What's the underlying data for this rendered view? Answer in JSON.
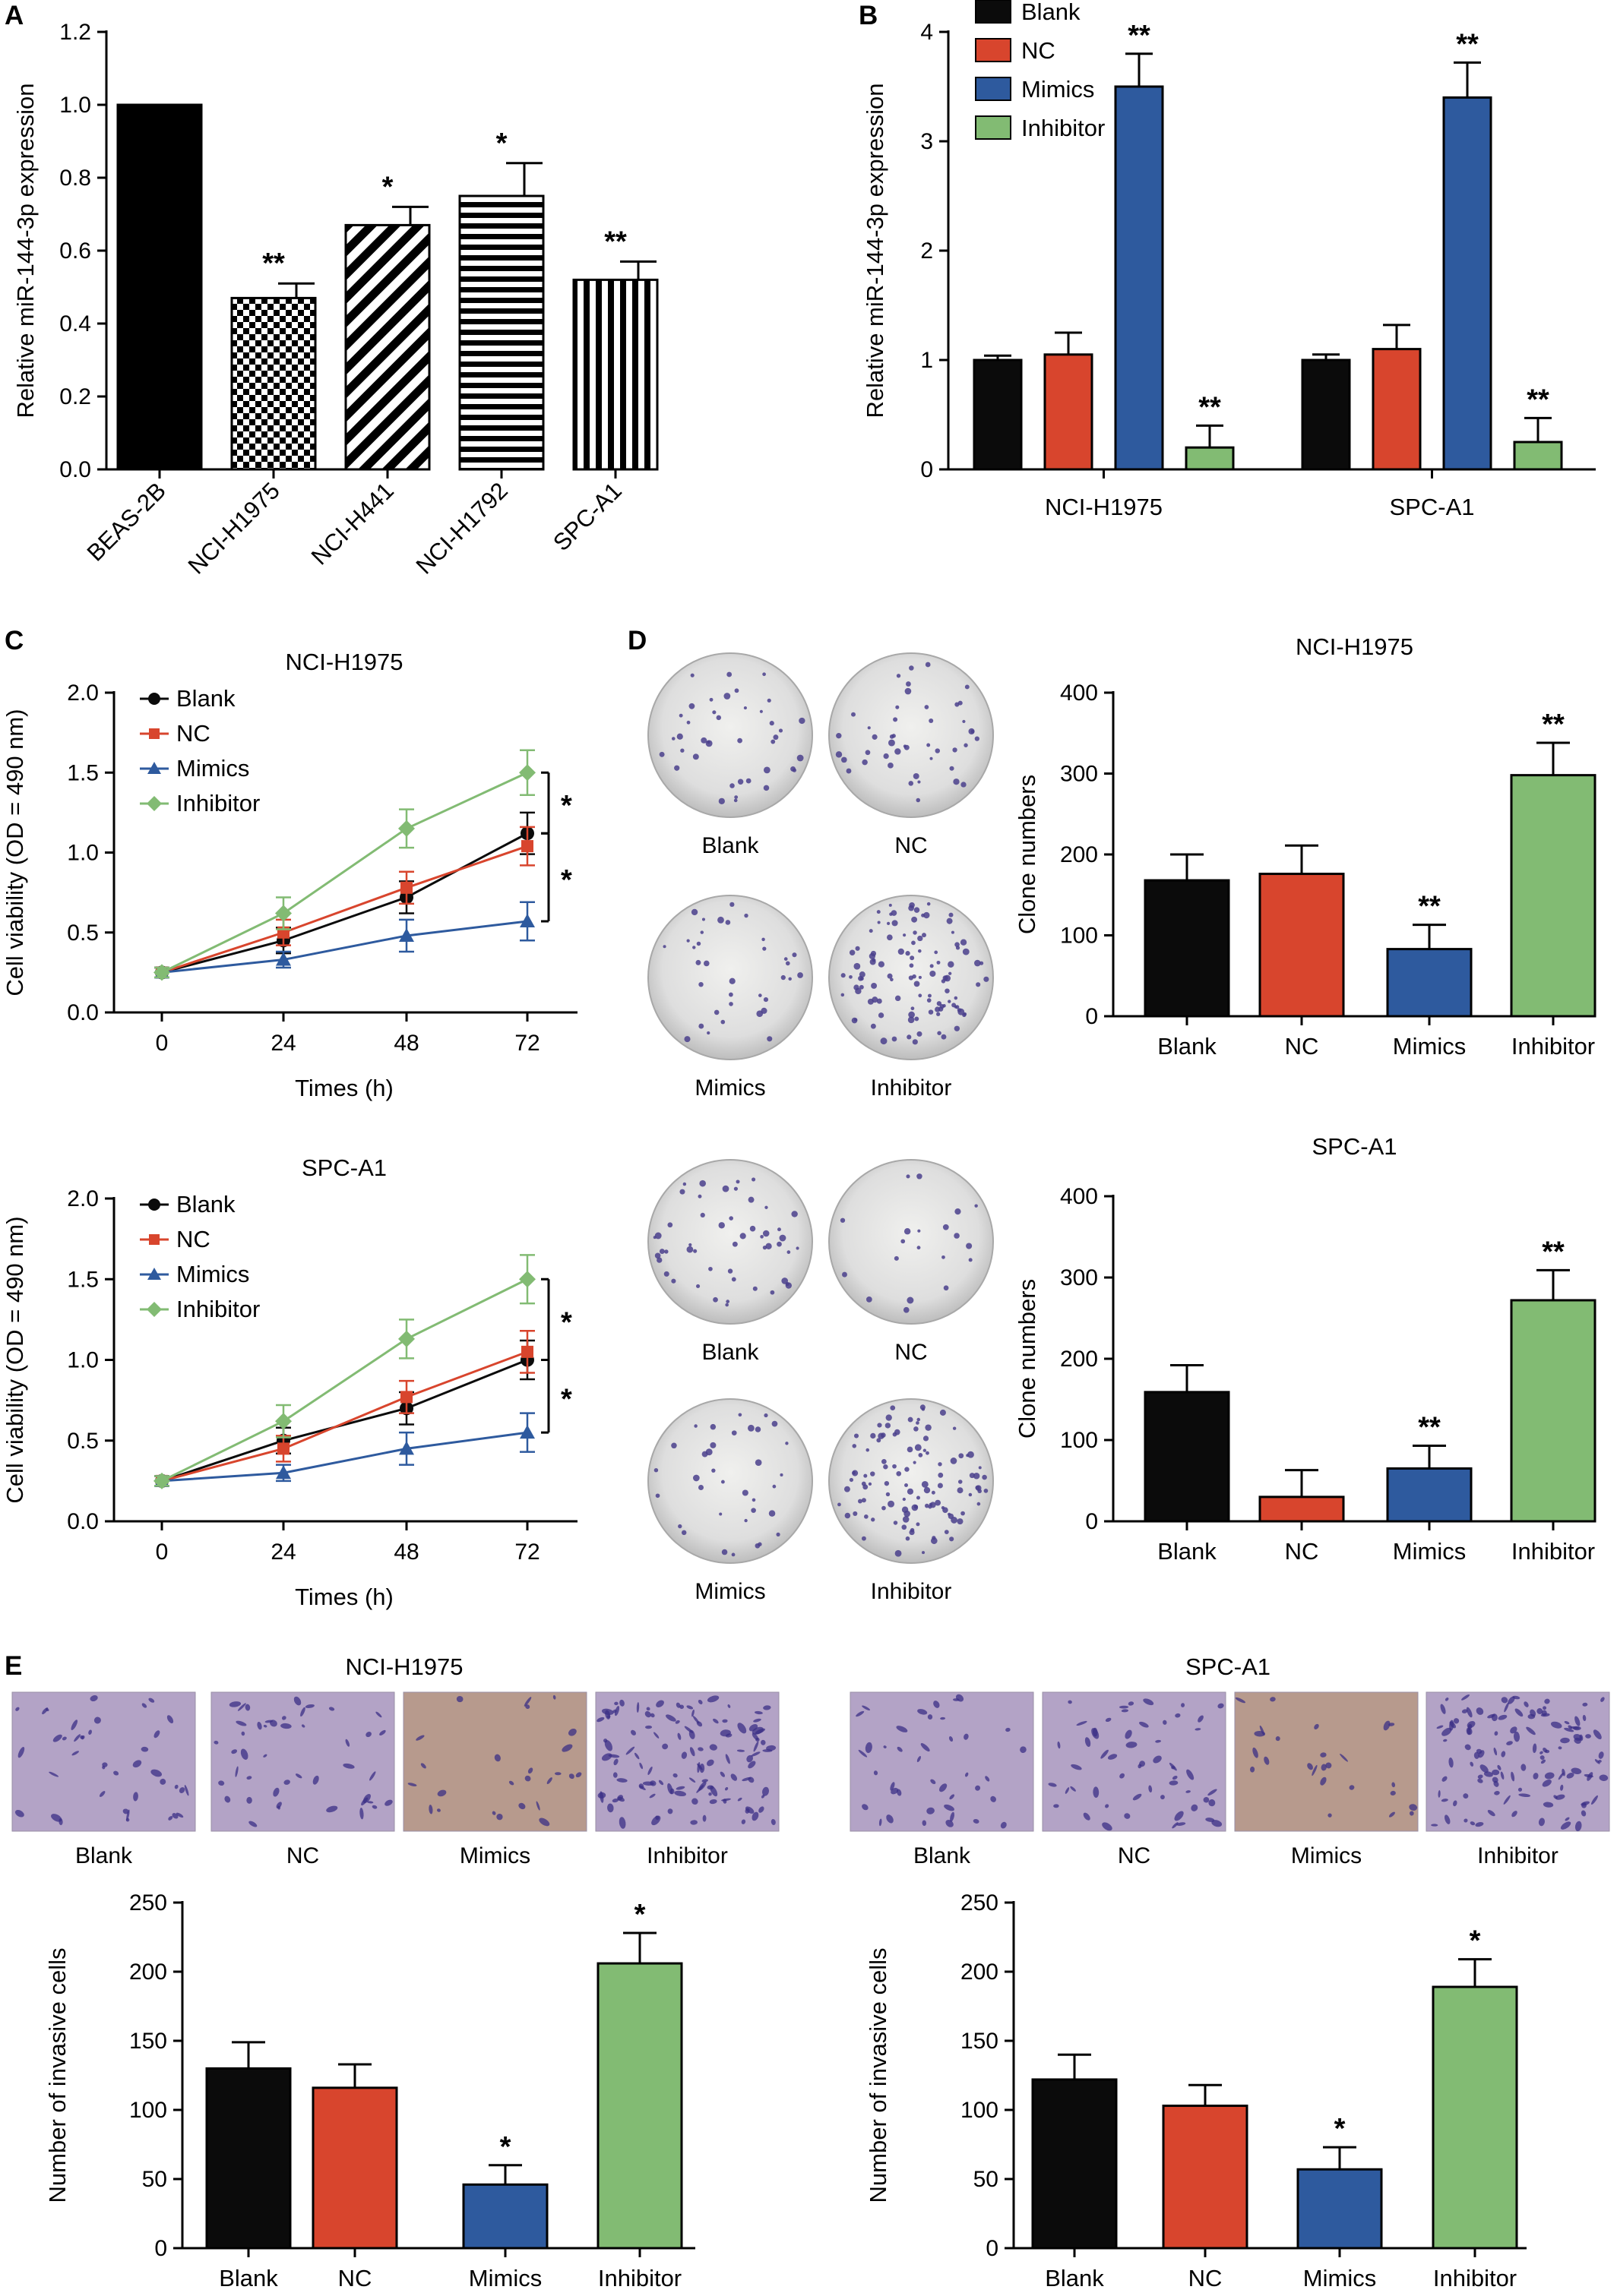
{
  "colors": {
    "blank": "#0b0b0b",
    "nc": "#d8452d",
    "mimics": "#2e5a9e",
    "inhibitor": "#82bb73"
  },
  "labels": {
    "a": "A",
    "b": "B",
    "c": "C",
    "d": "D",
    "e": "E"
  },
  "chart_data": [
    {
      "id": "A",
      "type": "bar",
      "categories": [
        "BEAS-2B",
        "NCI-H1975",
        "NCI-H441",
        "NCI-H1792",
        "SPC-A1"
      ],
      "values": [
        1.0,
        0.47,
        0.67,
        0.75,
        0.52
      ],
      "errors": [
        0,
        0.04,
        0.05,
        0.09,
        0.05
      ],
      "significance": [
        "",
        "**",
        "*",
        "*",
        "**"
      ],
      "patterns": [
        "solid",
        "checker",
        "diagonal",
        "horizontal",
        "vertical"
      ],
      "ylabel": "Relative miR-144-3p expression",
      "ylim": [
        0,
        1.2
      ],
      "yticks": [
        "0.0",
        "0.2",
        "0.4",
        "0.6",
        "0.8",
        "1.0",
        "1.2"
      ]
    },
    {
      "id": "B",
      "type": "bar",
      "categories": [
        "NCI-H1975",
        "SPC-A1"
      ],
      "series": [
        {
          "name": "Blank",
          "values": [
            1.0,
            1.0
          ],
          "errors": [
            0.04,
            0.05
          ],
          "significance": [
            "",
            ""
          ]
        },
        {
          "name": "NC",
          "values": [
            1.05,
            1.1
          ],
          "errors": [
            0.2,
            0.22
          ],
          "significance": [
            "",
            ""
          ]
        },
        {
          "name": "Mimics",
          "values": [
            3.5,
            3.4
          ],
          "errors": [
            0.3,
            0.32
          ],
          "significance": [
            "**",
            "**"
          ]
        },
        {
          "name": "Inhibitor",
          "values": [
            0.2,
            0.25
          ],
          "errors": [
            0.2,
            0.22
          ],
          "significance": [
            "**",
            "**"
          ]
        }
      ],
      "ylabel": "Relative miR-144-3p expression",
      "ylim": [
        0,
        4
      ],
      "yticks": [
        "0",
        "1",
        "2",
        "3",
        "4"
      ],
      "legend": "top-right"
    },
    {
      "id": "C1",
      "type": "line",
      "title": "NCI-H1975",
      "x": [
        "0",
        "24",
        "48",
        "72"
      ],
      "series": [
        {
          "name": "Blank",
          "values": [
            0.25,
            0.45,
            0.72,
            1.12
          ],
          "errors": [
            0.03,
            0.08,
            0.1,
            0.13
          ]
        },
        {
          "name": "NC",
          "values": [
            0.25,
            0.5,
            0.78,
            1.04
          ],
          "errors": [
            0.03,
            0.08,
            0.1,
            0.12
          ]
        },
        {
          "name": "Mimics",
          "values": [
            0.25,
            0.33,
            0.48,
            0.57
          ],
          "errors": [
            0.03,
            0.05,
            0.1,
            0.12
          ]
        },
        {
          "name": "Inhibitor",
          "values": [
            0.25,
            0.62,
            1.15,
            1.5
          ],
          "errors": [
            0.03,
            0.1,
            0.12,
            0.14
          ]
        }
      ],
      "significance": [
        "*",
        "*"
      ],
      "xlabel": "Times (h)",
      "ylabel": "Cell viability (OD = 490 nm)",
      "ylim": [
        0,
        2.0
      ],
      "yticks": [
        "0.0",
        "0.5",
        "1.0",
        "1.5",
        "2.0"
      ]
    },
    {
      "id": "C2",
      "type": "line",
      "title": "SPC-A1",
      "x": [
        "0",
        "24",
        "48",
        "72"
      ],
      "series": [
        {
          "name": "Blank",
          "values": [
            0.25,
            0.5,
            0.7,
            1.0
          ],
          "errors": [
            0.03,
            0.08,
            0.1,
            0.12
          ]
        },
        {
          "name": "NC",
          "values": [
            0.25,
            0.45,
            0.77,
            1.05
          ],
          "errors": [
            0.03,
            0.08,
            0.1,
            0.13
          ]
        },
        {
          "name": "Mimics",
          "values": [
            0.25,
            0.3,
            0.45,
            0.55
          ],
          "errors": [
            0.03,
            0.05,
            0.1,
            0.12
          ]
        },
        {
          "name": "Inhibitor",
          "values": [
            0.25,
            0.62,
            1.13,
            1.5
          ],
          "errors": [
            0.03,
            0.1,
            0.12,
            0.15
          ]
        }
      ],
      "significance": [
        "*",
        "*"
      ],
      "xlabel": "Times (h)",
      "ylabel": "Cell viability (OD = 490 nm)",
      "ylim": [
        0,
        2.0
      ],
      "yticks": [
        "0.0",
        "0.5",
        "1.0",
        "1.5",
        "2.0"
      ]
    },
    {
      "id": "D1",
      "type": "bar",
      "title": "NCI-H1975",
      "categories": [
        "Blank",
        "NC",
        "Mimics",
        "Inhibitor"
      ],
      "values": [
        168,
        176,
        83,
        298
      ],
      "errors": [
        32,
        35,
        30,
        40
      ],
      "significance": [
        "",
        "",
        "**",
        "**"
      ],
      "ylabel": "Clone numbers",
      "ylim": [
        0,
        400
      ],
      "yticks": [
        "0",
        "100",
        "200",
        "300",
        "400"
      ]
    },
    {
      "id": "D2",
      "type": "bar",
      "title": "SPC-A1",
      "categories": [
        "Blank",
        "NC",
        "Mimics",
        "Inhibitor"
      ],
      "values": [
        159,
        30,
        65,
        272
      ],
      "errors": [
        33,
        33,
        28,
        37
      ],
      "significance": [
        "",
        "",
        "**",
        "**"
      ],
      "ylabel": "Clone numbers",
      "ylim": [
        0,
        400
      ],
      "yticks": [
        "0",
        "100",
        "200",
        "300",
        "400"
      ]
    },
    {
      "id": "E1",
      "type": "bar",
      "title": "NCI-H1975",
      "categories": [
        "Blank",
        "NC",
        "Mimics",
        "Inhibitor"
      ],
      "values": [
        130,
        116,
        46,
        206
      ],
      "errors": [
        19,
        17,
        14,
        22
      ],
      "significance": [
        "",
        "",
        "*",
        "*"
      ],
      "ylabel": "Number of invasive cells",
      "ylim": [
        0,
        250
      ],
      "yticks": [
        "0",
        "50",
        "100",
        "150",
        "200",
        "250"
      ]
    },
    {
      "id": "E2",
      "type": "bar",
      "title": "SPC-A1",
      "categories": [
        "Blank",
        "NC",
        "Mimics",
        "Inhibitor"
      ],
      "values": [
        122,
        103,
        57,
        189
      ],
      "errors": [
        18,
        15,
        16,
        20
      ],
      "significance": [
        "",
        "",
        "*",
        "*"
      ],
      "ylabel": "Number of invasive cells",
      "ylim": [
        0,
        250
      ],
      "yticks": [
        "0",
        "50",
        "100",
        "150",
        "200",
        "250"
      ]
    }
  ],
  "dishes": {
    "top": [
      "Blank",
      "NC",
      "Mimics",
      "Inhibitor"
    ],
    "bottom": [
      "Blank",
      "NC",
      "Mimics",
      "Inhibitor"
    ]
  },
  "photos": {
    "left": [
      "Blank",
      "NC",
      "Mimics",
      "Inhibitor"
    ],
    "right": [
      "Blank",
      "NC",
      "Mimics",
      "Inhibitor"
    ]
  }
}
